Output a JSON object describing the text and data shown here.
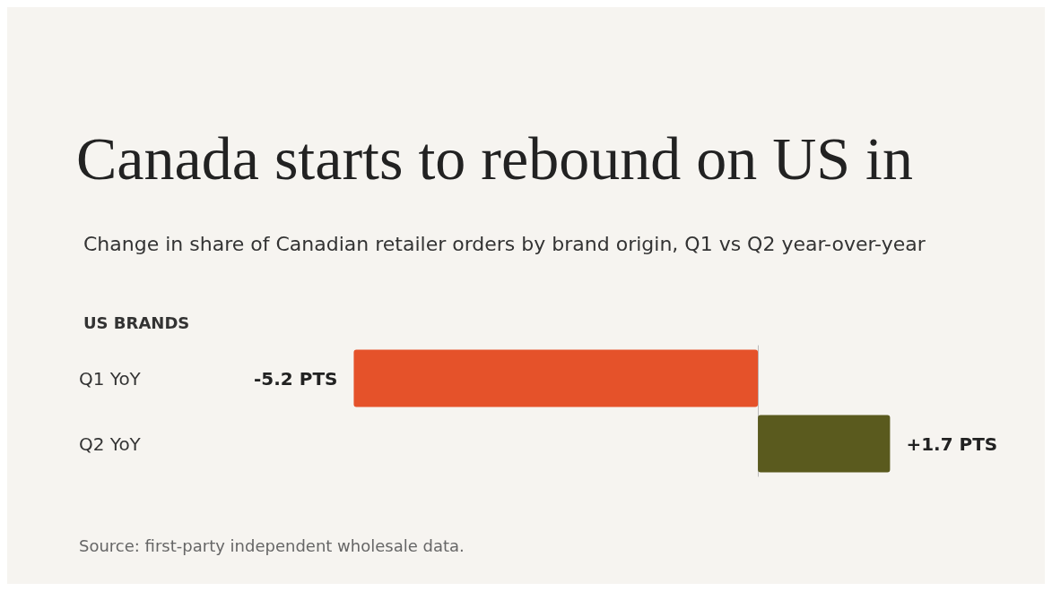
{
  "chart_data": {
    "type": "bar",
    "orientation": "horizontal",
    "title": "Canada starts to rebound on US in",
    "subtitle": "Change in share of Canadian retailer orders by brand origin, Q1 vs Q2 year-over-year",
    "ylabel": "US BRANDS",
    "categories": [
      "Q1 YoY",
      "Q2 YoY"
    ],
    "values": [
      -5.2,
      1.7
    ],
    "colors": [
      "#e5522a",
      "#5a5a1e"
    ],
    "value_labels": [
      "-5.2 PTS",
      "+1.7 PTS"
    ],
    "annotations": [
      "Source: first-party independent wholesale data."
    ]
  }
}
